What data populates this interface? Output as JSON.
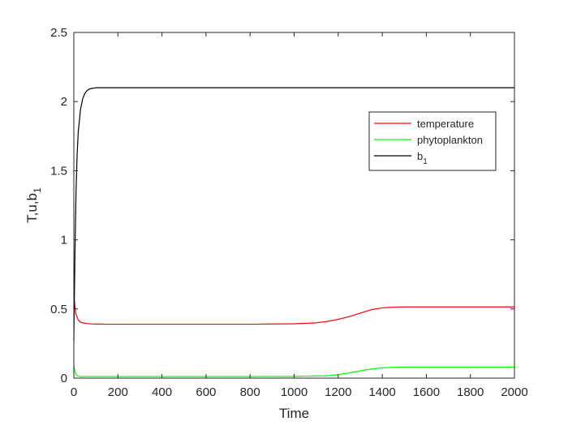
{
  "chart_data": {
    "type": "line",
    "xlabel": "Time",
    "ylabel": {
      "main": "T,u,b",
      "sub": "1"
    },
    "xlim": [
      0,
      2000
    ],
    "ylim": [
      0,
      2.5
    ],
    "x_ticks": [
      0,
      200,
      400,
      600,
      800,
      1000,
      1200,
      1400,
      1600,
      1800,
      2000
    ],
    "x_tick_labels": [
      "0",
      "200",
      "400",
      "600",
      "800",
      "1000",
      "1200",
      "1400",
      "1600",
      "1800",
      "2000"
    ],
    "y_ticks": [
      0,
      0.5,
      1,
      1.5,
      2,
      2.5
    ],
    "y_tick_labels": [
      "0",
      "0.5",
      "1",
      "1.5",
      "2",
      "2.5"
    ],
    "grid": false,
    "legend_position": "upper-right",
    "series": [
      {
        "name": "temperature",
        "label_sub": "",
        "color": "#ff0000",
        "x": [
          0,
          5,
          10,
          20,
          30,
          40,
          60,
          80,
          100,
          150,
          200,
          400,
          600,
          800,
          1000,
          1100,
          1150,
          1200,
          1250,
          1300,
          1350,
          1400,
          1450,
          1500,
          1600,
          2000
        ],
        "y": [
          0.6,
          0.52,
          0.46,
          0.42,
          0.405,
          0.4,
          0.395,
          0.392,
          0.391,
          0.39,
          0.39,
          0.39,
          0.39,
          0.39,
          0.393,
          0.4,
          0.41,
          0.425,
          0.445,
          0.47,
          0.495,
          0.508,
          0.513,
          0.515,
          0.515,
          0.515
        ]
      },
      {
        "name": "phytoplankton",
        "label_sub": "",
        "color": "#00ff00",
        "x": [
          0,
          5,
          10,
          20,
          30,
          50,
          100,
          200,
          400,
          600,
          800,
          1000,
          1150,
          1200,
          1250,
          1300,
          1350,
          1400,
          1450,
          1500,
          1600,
          2000
        ],
        "y": [
          0.09,
          0.05,
          0.025,
          0.015,
          0.012,
          0.012,
          0.012,
          0.012,
          0.012,
          0.012,
          0.012,
          0.013,
          0.017,
          0.025,
          0.038,
          0.052,
          0.066,
          0.075,
          0.078,
          0.08,
          0.08,
          0.08
        ]
      },
      {
        "name": "b",
        "label_sub": "1",
        "color": "#000000",
        "x": [
          0,
          5,
          10,
          15,
          20,
          30,
          40,
          50,
          60,
          70,
          80,
          100,
          120,
          150,
          200,
          2000
        ],
        "y": [
          0.27,
          0.9,
          1.35,
          1.62,
          1.78,
          1.94,
          2.02,
          2.06,
          2.08,
          2.09,
          2.095,
          2.1,
          2.1,
          2.1,
          2.1,
          2.1
        ]
      }
    ]
  }
}
